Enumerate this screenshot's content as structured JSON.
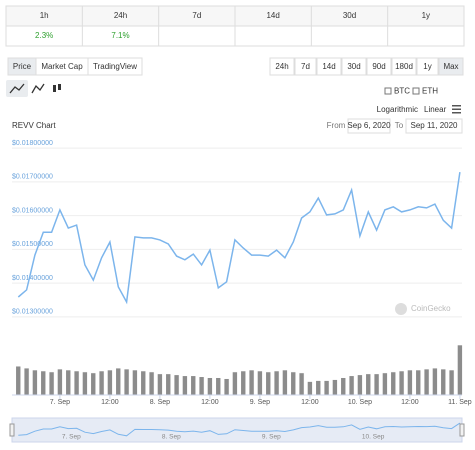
{
  "periods": {
    "headers": [
      "1h",
      "24h",
      "7d",
      "14d",
      "30d",
      "1y"
    ],
    "values": [
      "2.3%",
      "7.1%"
    ]
  },
  "tabs": [
    "Price",
    "Market Cap",
    "TradingView"
  ],
  "ranges": [
    "24h",
    "7d",
    "14d",
    "30d",
    "90d",
    "180d",
    "1y",
    "Max"
  ],
  "currencies": [
    "BTC",
    "ETH"
  ],
  "scales": [
    "Logarithmic",
    "Linear"
  ],
  "from_label": "From",
  "from_date": "Sep 6, 2020",
  "to_label": "To",
  "to_date": "Sep 11, 2020",
  "watermark": "CoinGecko",
  "chart_data": {
    "type": "line",
    "title": "REVV Chart",
    "color": "#7cb5ec",
    "grid": true,
    "x": [
      "2020-09-06 14:00",
      "2020-09-06 16:00",
      "2020-09-06 18:00",
      "2020-09-06 20:00",
      "2020-09-06 22:00",
      "2020-09-07 00:00",
      "2020-09-07 02:00",
      "2020-09-07 04:00",
      "2020-09-07 06:00",
      "2020-09-07 08:00",
      "2020-09-07 10:00",
      "2020-09-07 12:00",
      "2020-09-07 14:00",
      "2020-09-07 16:00",
      "2020-09-07 18:00",
      "2020-09-07 20:00",
      "2020-09-07 22:00",
      "2020-09-08 00:00",
      "2020-09-08 02:00",
      "2020-09-08 04:00",
      "2020-09-08 06:00",
      "2020-09-08 08:00",
      "2020-09-08 10:00",
      "2020-09-08 12:00",
      "2020-09-08 14:00",
      "2020-09-08 16:00",
      "2020-09-08 18:00",
      "2020-09-08 20:00",
      "2020-09-08 22:00",
      "2020-09-09 00:00",
      "2020-09-09 02:00",
      "2020-09-09 04:00",
      "2020-09-09 06:00",
      "2020-09-09 08:00",
      "2020-09-09 10:00",
      "2020-09-09 12:00",
      "2020-09-09 14:00",
      "2020-09-09 16:00",
      "2020-09-09 18:00",
      "2020-09-09 20:00",
      "2020-09-09 22:00",
      "2020-09-10 00:00",
      "2020-09-10 02:00",
      "2020-09-10 04:00",
      "2020-09-10 06:00",
      "2020-09-10 08:00",
      "2020-09-10 10:00",
      "2020-09-10 12:00",
      "2020-09-10 14:00",
      "2020-09-10 16:00",
      "2020-09-10 18:00",
      "2020-09-10 20:00",
      "2020-09-10 22:00",
      "2020-09-11 00:00"
    ],
    "values": [
      0.01359,
      0.0138,
      0.01483,
      0.01551,
      0.01551,
      0.01617,
      0.01563,
      0.01572,
      0.01454,
      0.01409,
      0.01475,
      0.01522,
      0.01389,
      0.01344,
      0.01537,
      0.01534,
      0.01534,
      0.01528,
      0.01516,
      0.0148,
      0.01469,
      0.01486,
      0.01454,
      0.01498,
      0.01386,
      0.01404,
      0.01528,
      0.01504,
      0.01483,
      0.01483,
      0.0148,
      0.01498,
      0.01475,
      0.01522,
      0.01593,
      0.01611,
      0.01652,
      0.01602,
      0.01605,
      0.01617,
      0.01676,
      0.0154,
      0.01611,
      0.01557,
      0.01617,
      0.01626,
      0.01611,
      0.01617,
      0.01626,
      0.01623,
      0.01634,
      0.01586,
      0.01563,
      0.01729
    ],
    "volume": [
      30,
      28,
      26,
      25,
      24,
      27,
      26,
      25,
      24,
      23,
      25,
      26,
      28,
      27,
      26,
      25,
      24,
      22,
      22,
      21,
      20,
      20,
      19,
      18,
      18,
      17,
      24,
      25,
      26,
      25,
      24,
      25,
      26,
      24,
      23,
      14,
      15,
      15,
      16,
      18,
      20,
      21,
      22,
      22,
      23,
      24,
      25,
      26,
      26,
      27,
      28,
      27,
      26,
      52
    ],
    "xlim": [
      "2020-09-06 12:30",
      "2020-09-11 00:30"
    ],
    "xticks": [
      {
        "value": "2020-09-07 00:00",
        "label": "7. Sep"
      },
      {
        "value": "2020-09-07 12:00",
        "label": "12:00"
      },
      {
        "value": "2020-09-08 00:00",
        "label": "8. Sep"
      },
      {
        "value": "2020-09-08 12:00",
        "label": "12:00"
      },
      {
        "value": "2020-09-09 00:00",
        "label": "9. Sep"
      },
      {
        "value": "2020-09-09 12:00",
        "label": "12:00"
      },
      {
        "value": "2020-09-10 00:00",
        "label": "10. Sep"
      },
      {
        "value": "2020-09-10 12:00",
        "label": "12:00"
      },
      {
        "value": "2020-09-11 00:00",
        "label": "11. Sep"
      }
    ],
    "ylim": [
      0.01276,
      0.01824
    ],
    "yticks": [
      {
        "value": 0.013,
        "label": "$0.01300000"
      },
      {
        "value": 0.014,
        "label": "$0.01400000"
      },
      {
        "value": 0.015,
        "label": "$0.01500000"
      },
      {
        "value": 0.016,
        "label": "$0.01600000"
      },
      {
        "value": 0.017,
        "label": "$0.01700000"
      },
      {
        "value": 0.018,
        "label": "$0.01800000"
      }
    ]
  }
}
